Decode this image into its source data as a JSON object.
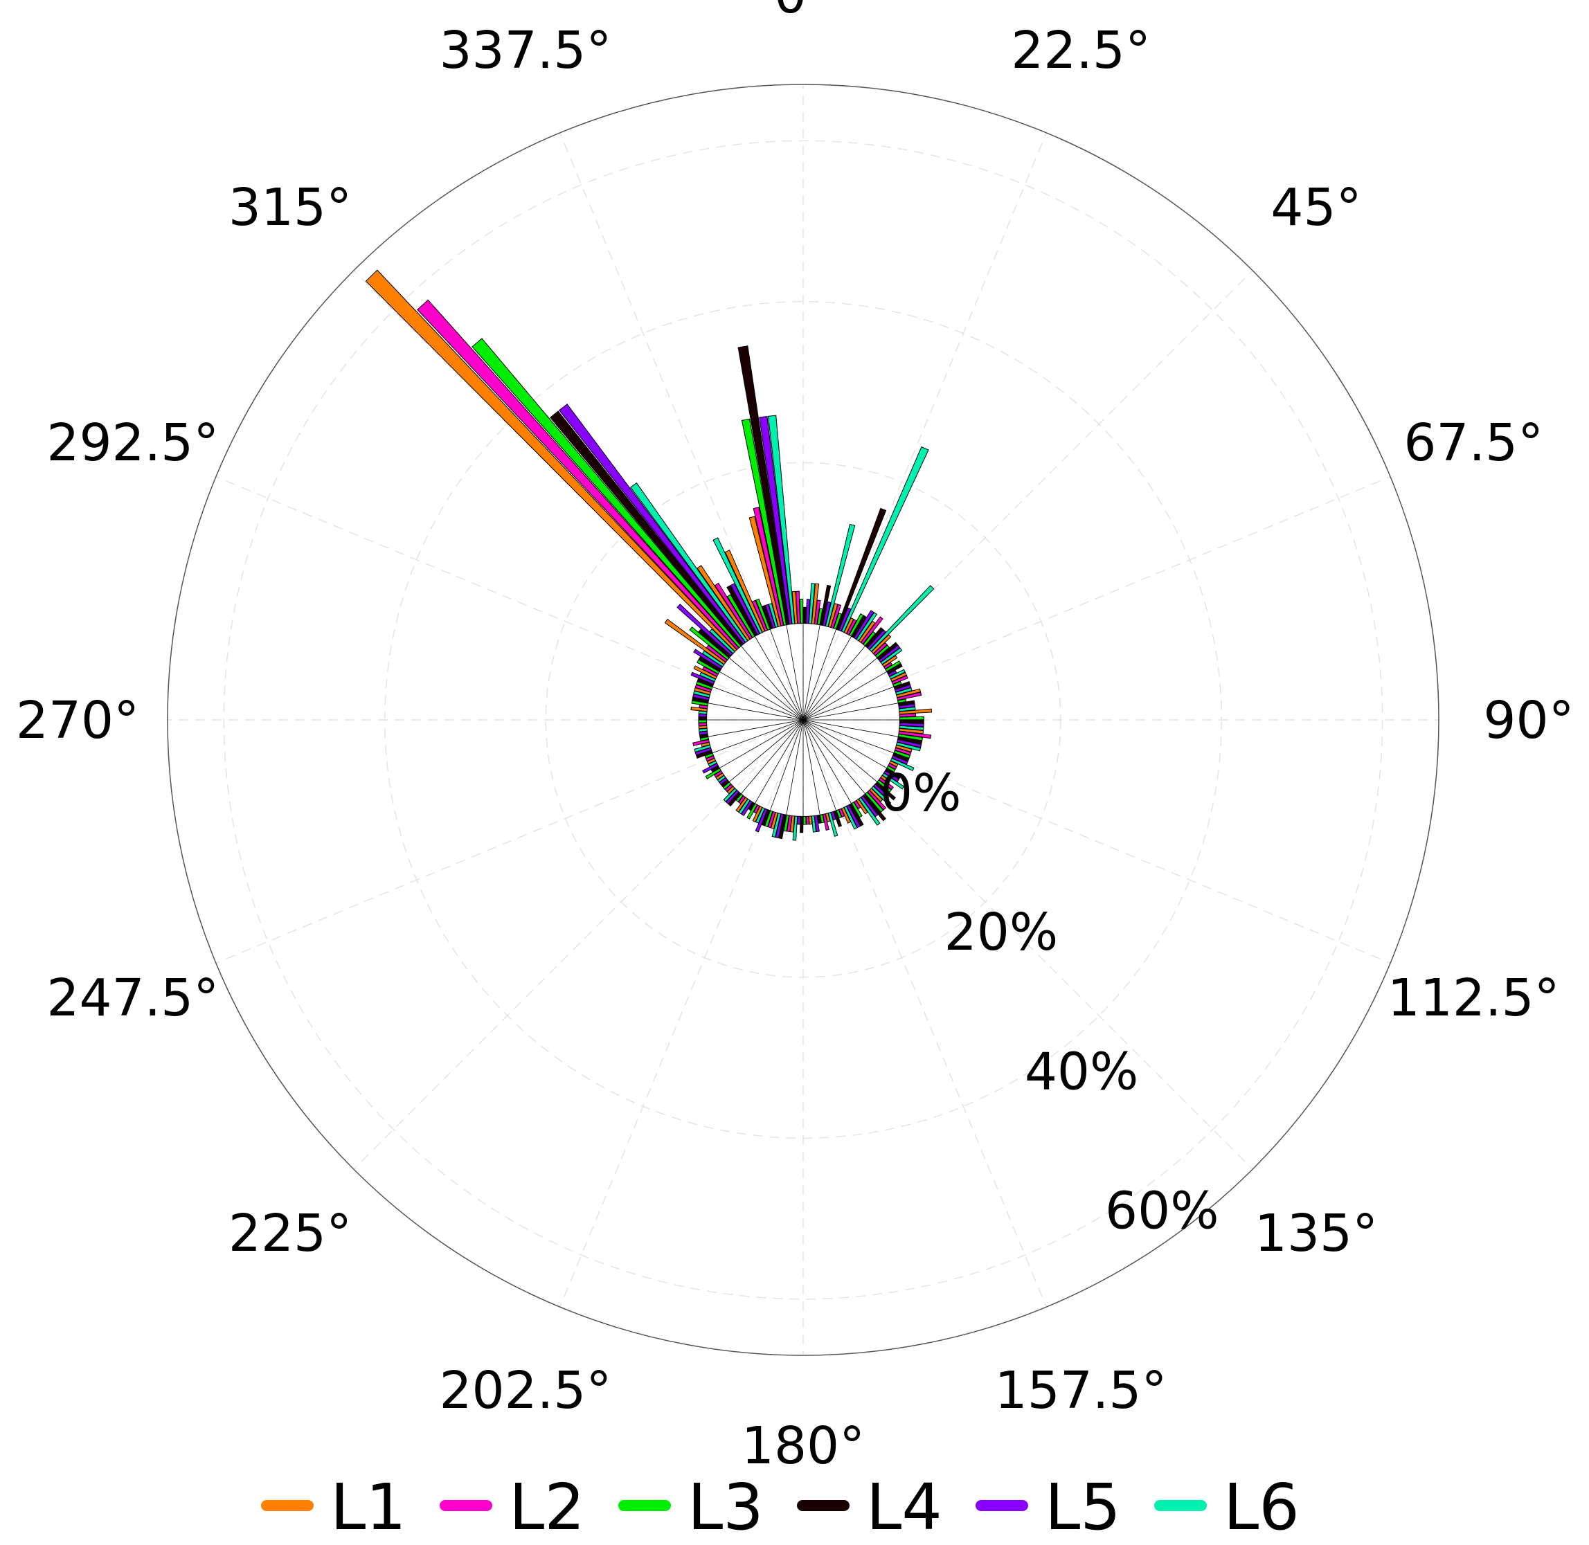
{
  "chart_data": {
    "type": "polar-bar",
    "title": "",
    "angle_labels": [
      "0°",
      "22.5°",
      "45°",
      "67.5°",
      "90°",
      "112.5°",
      "135°",
      "157.5°",
      "180°",
      "202.5°",
      "225°",
      "247.5°",
      "270°",
      "292.5°",
      "315°",
      "337.5°"
    ],
    "radial_labels": [
      "0%",
      "20%",
      "40%",
      "60%"
    ],
    "radial_ticks": [
      0,
      20,
      40,
      60
    ],
    "radial_range": [
      -12,
      67
    ],
    "sector_width_deg": 10,
    "sector_centers_deg": [
      0,
      10,
      20,
      30,
      40,
      50,
      60,
      70,
      80,
      90,
      100,
      110,
      120,
      130,
      140,
      150,
      160,
      170,
      180,
      190,
      200,
      210,
      220,
      230,
      240,
      250,
      260,
      270,
      280,
      290,
      300,
      310,
      320,
      330,
      340,
      350
    ],
    "legend_position": "bottom",
    "series": [
      {
        "name": "L1",
        "color": "#ff8000",
        "values": [
          4,
          5,
          3,
          2,
          3,
          3,
          2,
          2,
          3,
          4,
          3,
          2,
          1,
          1,
          2,
          2,
          2,
          1,
          1,
          2,
          2,
          2,
          2,
          1,
          1,
          1,
          1,
          1,
          2,
          2,
          3,
          9,
          65,
          11,
          11,
          14
        ]
      },
      {
        "name": "L2",
        "color": "#ff00cc",
        "values": [
          4,
          3,
          3,
          2,
          4,
          2,
          1,
          2,
          3,
          2,
          4,
          2,
          1,
          2,
          3,
          1,
          1,
          2,
          1,
          2,
          2,
          1,
          1,
          1,
          1,
          1,
          2,
          1,
          1,
          2,
          2,
          3,
          58,
          8,
          4,
          15
        ]
      },
      {
        "name": "L3",
        "color": "#00ee00",
        "values": [
          3,
          2,
          2,
          3,
          2,
          2,
          2,
          1,
          1,
          3,
          3,
          2,
          1,
          2,
          3,
          2,
          1,
          1,
          1,
          2,
          2,
          2,
          1,
          1,
          2,
          1,
          1,
          1,
          2,
          2,
          3,
          6,
          50,
          6,
          4,
          26
        ]
      },
      {
        "name": "L4",
        "color": "#1a0000",
        "values": [
          2,
          5,
          16,
          3,
          3,
          3,
          2,
          2,
          2,
          3,
          3,
          2,
          2,
          3,
          4,
          3,
          2,
          1,
          2,
          3,
          2,
          1,
          2,
          1,
          1,
          2,
          1,
          1,
          2,
          2,
          3,
          5,
          37,
          7,
          3,
          35
        ]
      },
      {
        "name": "L5",
        "color": "#8800ff",
        "values": [
          3,
          3,
          3,
          4,
          3,
          3,
          1,
          2,
          2,
          3,
          3,
          2,
          2,
          2,
          3,
          3,
          1,
          2,
          1,
          3,
          3,
          2,
          2,
          1,
          2,
          2,
          1,
          1,
          2,
          3,
          4,
          9,
          37,
          7,
          3,
          26
        ]
      },
      {
        "name": "L6",
        "color": "#00f0b0",
        "values": [
          5,
          13,
          25,
          4,
          11,
          3,
          2,
          2,
          2,
          3,
          3,
          3,
          3,
          3,
          4,
          3,
          3,
          2,
          3,
          3,
          2,
          2,
          2,
          1,
          1,
          2,
          1,
          1,
          2,
          2,
          3,
          4,
          24,
          13,
          3,
          26
        ]
      }
    ]
  }
}
